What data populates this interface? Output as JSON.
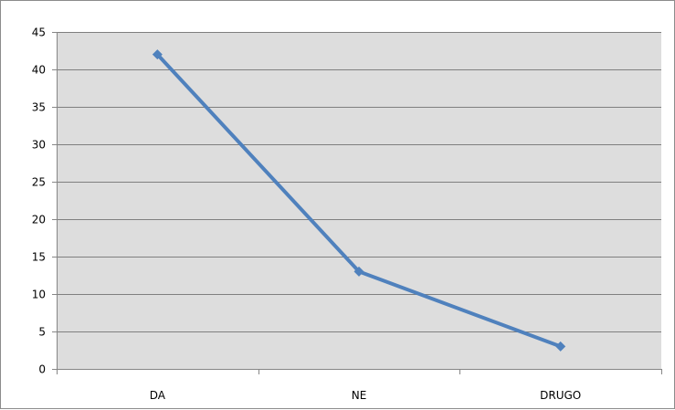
{
  "chart_data": {
    "type": "line",
    "categories": [
      "DA",
      "NE",
      "DRUGO"
    ],
    "series": [
      {
        "values": [
          42,
          13,
          3
        ]
      }
    ],
    "ylim": [
      0,
      45
    ],
    "yticks": [
      0,
      5,
      10,
      15,
      20,
      25,
      30,
      35,
      40,
      45
    ],
    "title": "",
    "xlabel": "",
    "ylabel": "",
    "grid": true,
    "legend": "none",
    "colors": {
      "series": "#4f81bd",
      "plot_background": "#dddddd",
      "gridline": "#7f7f7f",
      "axis": "#868686",
      "frame": "#8c8c8c"
    }
  }
}
